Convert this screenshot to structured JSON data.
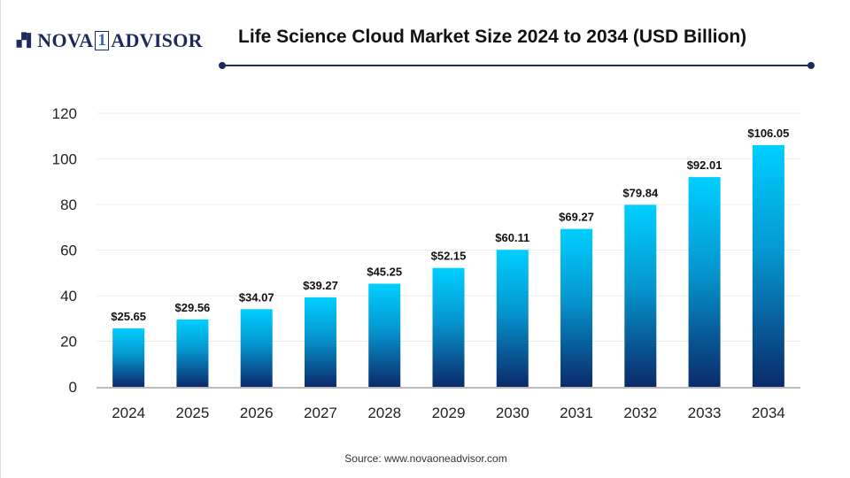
{
  "logo": {
    "brand": "NOVA 1 ADVISOR"
  },
  "title": "Life Science Cloud Market Size 2024 to 2034 (USD Billion)",
  "source": "Source: www.novaoneadvisor.com",
  "colors": {
    "bar_top": "#00cfff",
    "bar_bottom": "#0b2a6a",
    "title_rule": "#1d2a5c"
  },
  "chart_data": {
    "type": "bar",
    "title": "Life Science Cloud Market Size 2024 to 2034 (USD Billion)",
    "categories": [
      "2024",
      "2025",
      "2026",
      "2027",
      "2028",
      "2029",
      "2030",
      "2031",
      "2032",
      "2033",
      "2034"
    ],
    "values": [
      25.65,
      29.56,
      34.07,
      39.27,
      45.25,
      52.15,
      60.11,
      69.27,
      79.84,
      92.01,
      106.05
    ],
    "data_labels": [
      "$25.65",
      "$29.56",
      "$34.07",
      "$39.27",
      "$45.25",
      "$52.15",
      "$60.11",
      "$69.27",
      "$79.84",
      "$92.01",
      "$106.05"
    ],
    "yticks": [
      "0",
      "20",
      "40",
      "60",
      "80",
      "100",
      "120"
    ],
    "ylim": [
      0,
      120
    ],
    "grid": true,
    "legend": "none"
  }
}
